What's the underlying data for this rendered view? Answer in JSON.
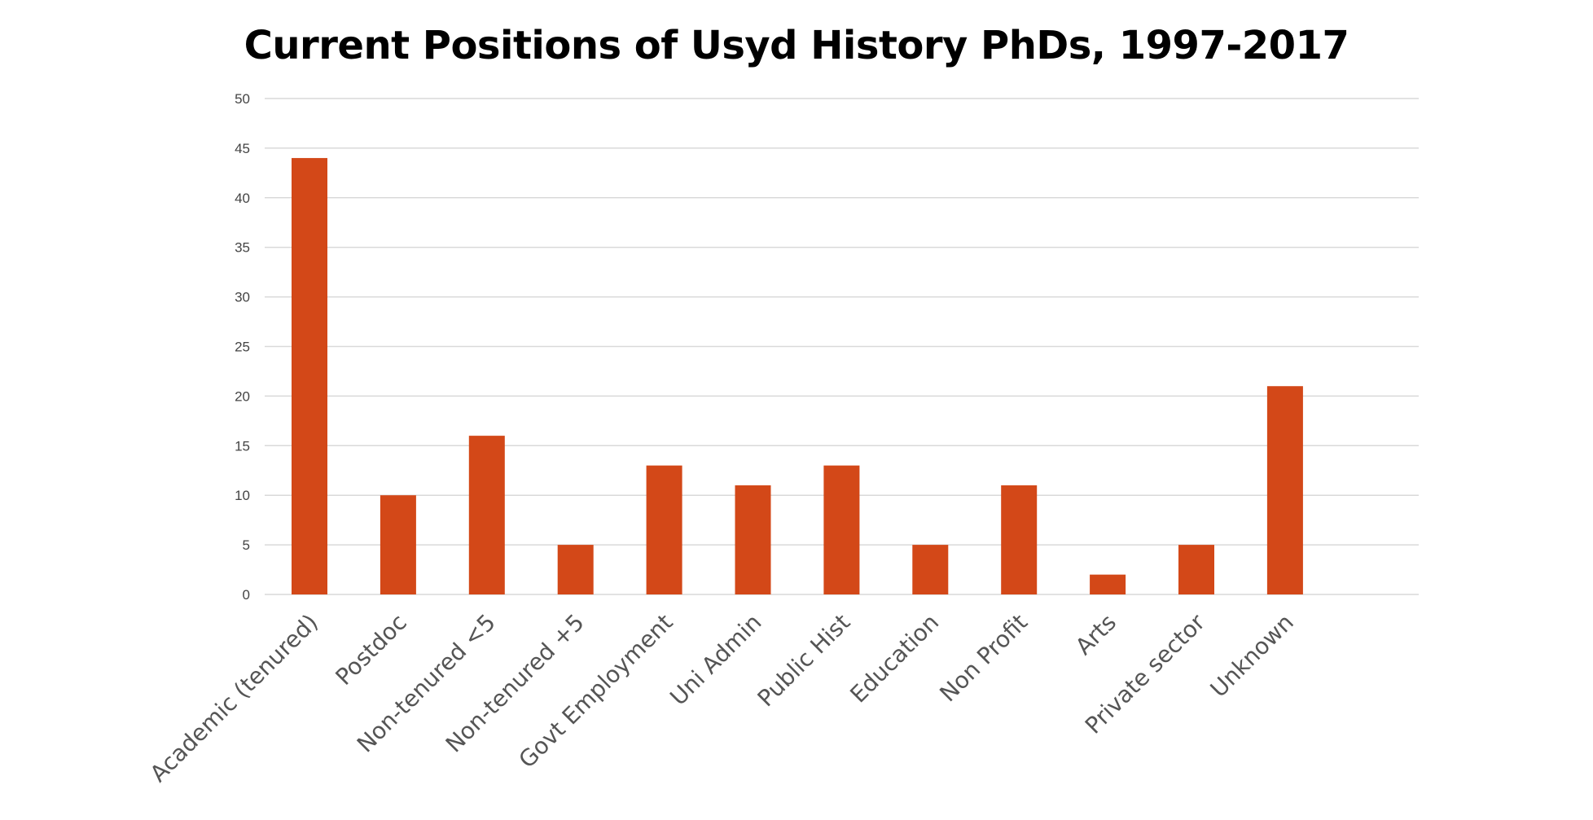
{
  "chart_data": {
    "type": "bar",
    "title": "Current Positions of Usyd History PhDs, 1997-2017",
    "xlabel": "",
    "ylabel": "",
    "ylim": [
      0,
      50
    ],
    "yticks": [
      0,
      5,
      10,
      15,
      20,
      25,
      30,
      35,
      40,
      45,
      50
    ],
    "grid": true,
    "legend": "none",
    "bar_color": "#D34818",
    "categories": [
      "Academic (tenured)",
      "Postdoc",
      "Non-tenured <5",
      "Non-tenured +5",
      "Govt Employment",
      "Uni Admin",
      "Public Hist",
      "Education",
      "Non Profit",
      "Arts",
      "Private sector",
      "Unknown"
    ],
    "values": [
      44,
      10,
      16,
      5,
      13,
      11,
      13,
      5,
      11,
      2,
      5,
      21
    ]
  }
}
